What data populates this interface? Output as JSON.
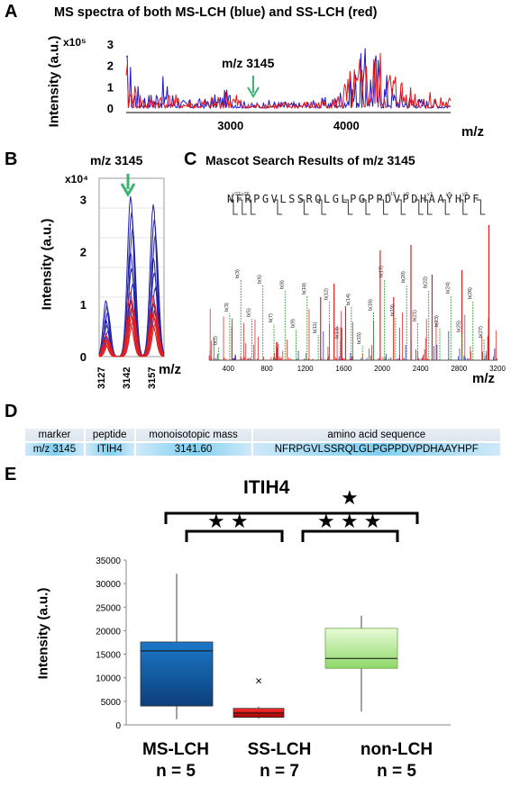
{
  "panels": {
    "A": {
      "letter": "A",
      "title": "MS spectra of both MS-LCH (blue) and SS-LCH (red)",
      "ylabel": "Intensity (a.u.)",
      "exponent": "x10⁵",
      "xlabel": "m/z",
      "annotation": "m/z 3145",
      "colors": {
        "ms_lch": "#1a1acc",
        "ss_lch": "#e01818",
        "arrow": "#3cb371"
      }
    },
    "B": {
      "letter": "B",
      "title": "m/z 3145",
      "ylabel": "Intensity (a.u.)",
      "exponent": "x10⁴",
      "xlabel": "m/z"
    },
    "C": {
      "letter": "C",
      "title": "Mascot Search Results of m/z 3145",
      "xlabel": "m/z",
      "sequence": "NFRPGVLSSRQLGLPGPPDVPDHAAYHPF",
      "y_labels": [
        "y27",
        "y26",
        "y15",
        "y9",
        "y7",
        "y5",
        "y3"
      ],
      "b_labels": [
        "b(2)",
        "b(3)",
        "b(3)",
        "b(5)",
        "b(6)",
        "b(7)",
        "b(8)",
        "b(9)",
        "b(10)",
        "b(11)",
        "b(12)",
        "b(13)",
        "b(14)",
        "b(15)",
        "b(16)",
        "b(17)",
        "b(19)",
        "b(20)",
        "b(21)",
        "b(22)",
        "b(23)",
        "b(24)",
        "b(25)",
        "b(26)",
        "b(27)"
      ]
    },
    "D": {
      "letter": "D",
      "headers": [
        "marker",
        "peptide",
        "monoisotopic mass",
        "amino acid sequence"
      ],
      "row": [
        "m/z 3145",
        "ITIH4",
        "3141.60",
        "NFRPGVLSSRQLGLPGPPDVPDHAAYHPF"
      ]
    },
    "E": {
      "letter": "E",
      "title": "ITIH4",
      "ylabel": "Intensity (a.u.)",
      "sig_ms_ss": "★ ★",
      "sig_ss_non": "★ ★ ★",
      "sig_ms_non": "★",
      "groups": [
        {
          "name": "MS-LCH",
          "n": "n = 5"
        },
        {
          "name": "SS-LCH",
          "n": "n = 7"
        },
        {
          "name": "non-LCH",
          "n": "n = 5"
        }
      ]
    }
  },
  "chart_data": [
    {
      "type": "line",
      "panel": "A",
      "title": "MS spectra of both MS-LCH (blue) and SS-LCH (red)",
      "xlabel": "m/z",
      "ylabel": "Intensity (a.u.)",
      "x_ticks": [
        3000,
        4000
      ],
      "y_ticks": [
        0,
        1,
        2,
        3
      ],
      "y_exponent": "x10^5",
      "series": [
        {
          "name": "MS-LCH",
          "color": "#1a1acc",
          "x": [
            2100,
            2200,
            2300,
            2400,
            2600,
            2800,
            3000,
            3145,
            3300,
            3600,
            3900,
            4150,
            4250,
            4400,
            4600,
            4800,
            4900
          ],
          "y": [
            3.1,
            1.2,
            0.8,
            1.6,
            0.4,
            0.5,
            1.0,
            0.2,
            0.4,
            0.3,
            0.6,
            2.9,
            3.2,
            1.2,
            0.6,
            0.4,
            0.3
          ]
        },
        {
          "name": "SS-LCH",
          "color": "#e01818",
          "x": [
            2100,
            2200,
            2300,
            2400,
            2600,
            2800,
            3000,
            3145,
            3300,
            3600,
            3900,
            4150,
            4250,
            4400,
            4600,
            4800,
            4900
          ],
          "y": [
            2.2,
            1.0,
            0.5,
            0.9,
            0.5,
            0.4,
            1.1,
            0.2,
            0.3,
            0.3,
            0.6,
            2.8,
            2.9,
            2.2,
            1.2,
            0.8,
            0.6
          ]
        }
      ]
    },
    {
      "type": "line",
      "panel": "B",
      "title": "m/z 3145",
      "xlabel": "m/z",
      "ylabel": "Intensity (a.u.)",
      "x_ticks": [
        3127,
        3142,
        3157
      ],
      "y_ticks": [
        0,
        1,
        2,
        3
      ],
      "y_exponent": "x10^4"
    },
    {
      "type": "bar",
      "panel": "C",
      "title": "Mascot Search Results of m/z 3145",
      "xlabel": "m/z",
      "x_ticks": [
        400,
        800,
        1200,
        1600,
        2000,
        2400,
        2800,
        3200
      ]
    },
    {
      "type": "box",
      "panel": "E",
      "title": "ITIH4",
      "ylabel": "Intensity (a.u.)",
      "ylim": [
        0,
        35000
      ],
      "y_ticks": [
        0,
        5000,
        10000,
        15000,
        20000,
        25000,
        30000,
        35000
      ],
      "categories": [
        "MS-LCH",
        "SS-LCH",
        "non-LCH"
      ],
      "boxes": [
        {
          "name": "MS-LCH",
          "min": 1200,
          "q1": 4000,
          "median": 15700,
          "q3": 17600,
          "max": 32100,
          "color": "#1565b0"
        },
        {
          "name": "SS-LCH",
          "min": 1300,
          "q1": 1600,
          "median": 2500,
          "q3": 3500,
          "max": 3900,
          "outliers": [
            9500
          ],
          "color": "#e02020"
        },
        {
          "name": "non-LCH",
          "min": 2800,
          "q1": 12000,
          "median": 14100,
          "q3": 20500,
          "max": 23200,
          "color": "#b8e890"
        }
      ]
    }
  ]
}
